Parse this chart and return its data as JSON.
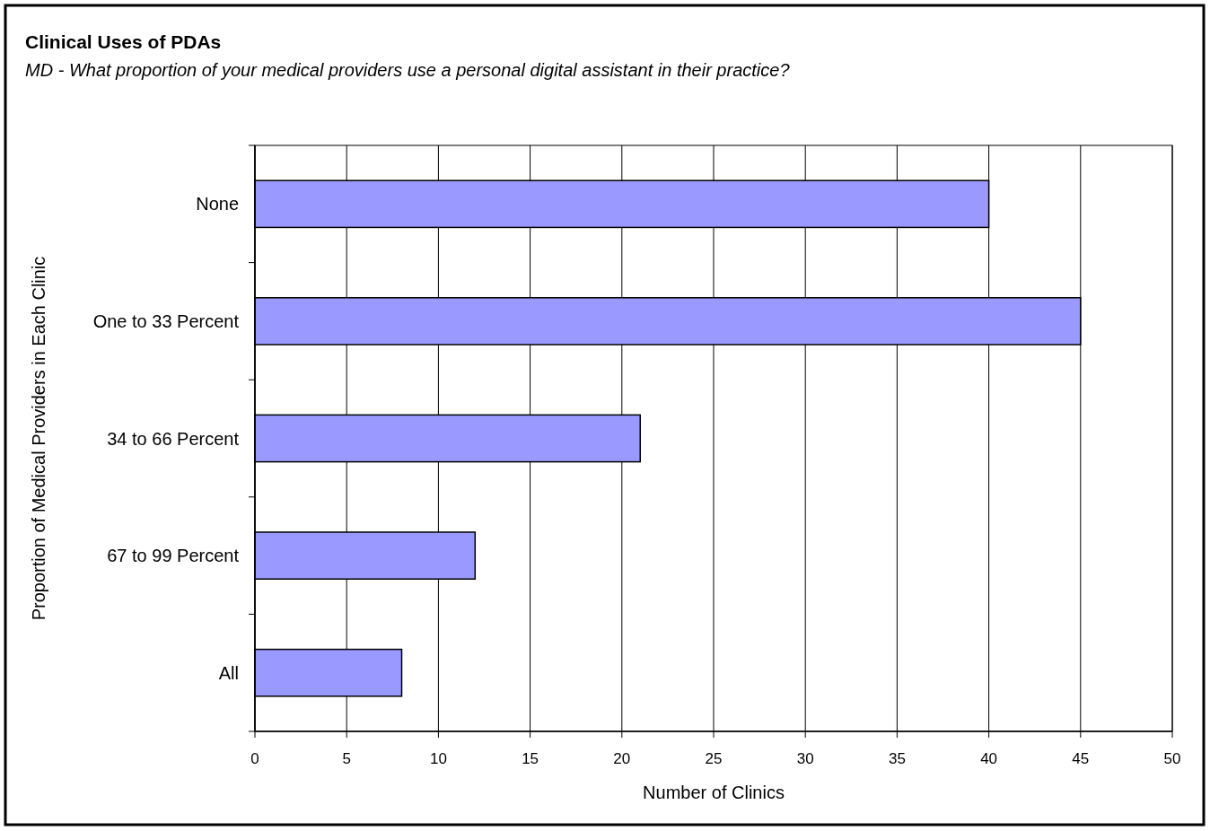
{
  "chart_data": {
    "type": "bar",
    "orientation": "horizontal",
    "title": "Clinical Uses of PDAs",
    "subtitle": "MD - What proportion of your medical providers use a personal digital assistant in their practice?",
    "xlabel": "Number of Clinics",
    "ylabel": "Proportion of Medical Providers in Each Clinic",
    "categories": [
      "None",
      "One to 33 Percent",
      "34 to 66 Percent",
      "67 to 99 Percent",
      "All"
    ],
    "values": [
      40,
      45,
      21,
      12,
      8
    ],
    "color": "#9999ff",
    "xlim": [
      0,
      50
    ],
    "xticks": [
      0,
      5,
      10,
      15,
      20,
      25,
      30,
      35,
      40,
      45,
      50
    ],
    "grid": "x"
  }
}
